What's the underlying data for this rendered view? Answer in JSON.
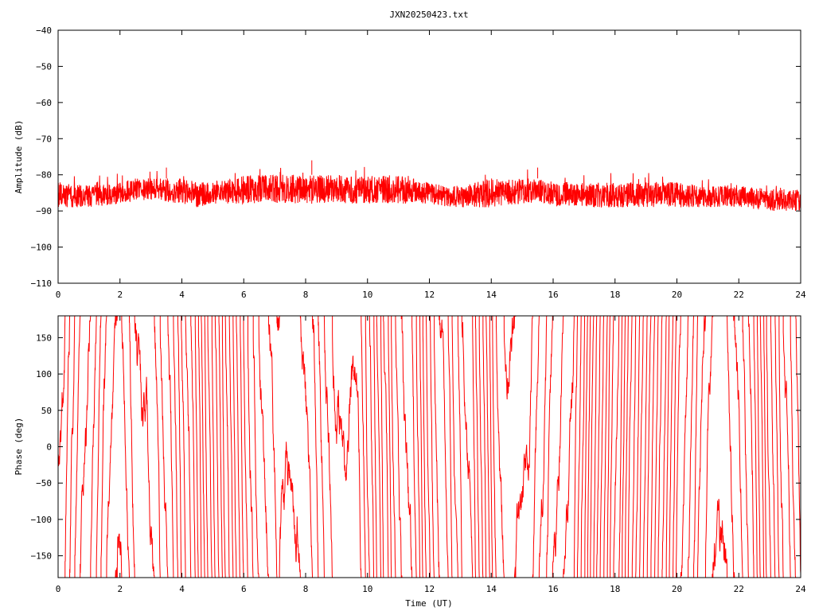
{
  "title": "JXN20250423.txt",
  "colors": {
    "series": "#ff0000",
    "axes": "#000000",
    "background": "#ffffff"
  },
  "chart_data": [
    {
      "type": "line",
      "name": "amplitude",
      "ylabel": "Amplitude (dB)",
      "xlabel": "",
      "xlim": [
        0,
        24
      ],
      "ylim": [
        -110,
        -40
      ],
      "xticks": [
        0,
        2,
        4,
        6,
        8,
        10,
        12,
        14,
        16,
        18,
        20,
        22,
        24
      ],
      "yticks": [
        -40,
        -50,
        -60,
        -70,
        -80,
        -90,
        -100,
        -110
      ],
      "ytick_labels": [
        "−40",
        "−50",
        "−60",
        "−70",
        "−80",
        "−90",
        "−100",
        "−110"
      ],
      "grid": false,
      "series_color": "#ff0000",
      "trend": {
        "x": [
          0,
          1,
          2,
          2.5,
          3,
          4,
          4.5,
          5,
          6,
          7,
          8,
          9,
          10,
          11,
          12,
          12.5,
          13,
          14,
          15,
          15.5,
          16,
          17,
          18,
          19,
          20,
          21,
          22,
          23,
          24
        ],
        "y": [
          -86,
          -86,
          -85,
          -84,
          -84,
          -84,
          -85,
          -85,
          -84,
          -84,
          -84,
          -84,
          -84,
          -84,
          -85,
          -86,
          -86,
          -85,
          -85,
          -85,
          -86,
          -86,
          -86,
          -86,
          -86,
          -86,
          -86,
          -87,
          -87
        ],
        "band_lo": [
          -89,
          -89,
          -88,
          -87,
          -87,
          -88,
          -89,
          -88,
          -88,
          -88,
          -88,
          -88,
          -88,
          -88,
          -88,
          -89,
          -89,
          -89,
          -88,
          -88,
          -89,
          -89,
          -89,
          -89,
          -89,
          -89,
          -89,
          -90,
          -90
        ],
        "band_hi": [
          -82,
          -83,
          -82,
          -81,
          -81,
          -81,
          -82,
          -82,
          -80,
          -80,
          -80,
          -80,
          -80,
          -80,
          -82,
          -83,
          -83,
          -81,
          -81,
          -81,
          -82,
          -82,
          -82,
          -82,
          -82,
          -83,
          -83,
          -84,
          -84
        ]
      },
      "peaks": [
        {
          "x": 8.2,
          "y": -76
        },
        {
          "x": 15.5,
          "y": -78
        },
        {
          "x": 3.5,
          "y": -78
        }
      ]
    },
    {
      "type": "line",
      "name": "phase",
      "ylabel": "Phase (deg)",
      "xlabel": "Time (UT)",
      "xlim": [
        0,
        24
      ],
      "ylim": [
        -180,
        180
      ],
      "xticks": [
        0,
        2,
        4,
        6,
        8,
        10,
        12,
        14,
        16,
        18,
        20,
        22,
        24
      ],
      "yticks": [
        150,
        100,
        50,
        0,
        -50,
        -100,
        -150
      ],
      "ytick_labels": [
        "150",
        "100",
        "50",
        "0",
        "−50",
        "−100",
        "−150"
      ],
      "grid": false,
      "series_color": "#ff0000",
      "wrap_range": [
        -180,
        180
      ],
      "drift_deg_per_hour": 720
    }
  ]
}
